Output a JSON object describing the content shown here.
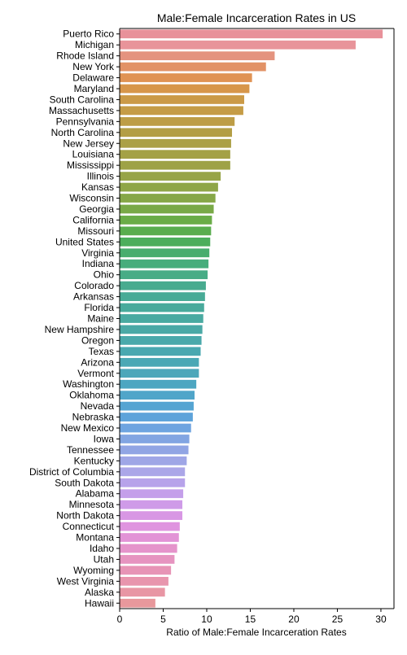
{
  "chart_data": {
    "type": "bar",
    "orientation": "horizontal",
    "title": "Male:Female Incarceration Rates in US",
    "xlabel": "Ratio of Male:Female Incarceration Rates",
    "ylabel": "",
    "xlim": [
      0,
      31.5
    ],
    "xticks": [
      0,
      5,
      10,
      15,
      20,
      25,
      30
    ],
    "grid": false,
    "categories": [
      "Puerto Rico",
      "Michigan",
      "Rhode Island",
      "New York",
      "Delaware",
      "Maryland",
      "South Carolina",
      "Massachusetts",
      "Pennsylvania",
      "North Carolina",
      "New Jersey",
      "Louisiana",
      "Mississippi",
      "Illinois",
      "Kansas",
      "Wisconsin",
      "Georgia",
      "California",
      "Missouri",
      "United States",
      "Virginia",
      "Indiana",
      "Ohio",
      "Colorado",
      "Arkansas",
      "Florida",
      "Maine",
      "New Hampshire",
      "Oregon",
      "Texas",
      "Arizona",
      "Vermont",
      "Washington",
      "Oklahoma",
      "Nevada",
      "Nebraska",
      "New Mexico",
      "Iowa",
      "Tennessee",
      "Kentucky",
      "District of Columbia",
      "South Dakota",
      "Alabama",
      "Minnesota",
      "North Dakota",
      "Connecticut",
      "Montana",
      "Idaho",
      "Utah",
      "Wyoming",
      "West Virginia",
      "Alaska",
      "Hawaii"
    ],
    "values": [
      30.2,
      27.1,
      17.8,
      16.8,
      15.2,
      14.9,
      14.3,
      14.2,
      13.2,
      12.9,
      12.8,
      12.7,
      12.7,
      11.6,
      11.3,
      11.0,
      10.8,
      10.6,
      10.5,
      10.4,
      10.3,
      10.2,
      10.1,
      9.9,
      9.8,
      9.7,
      9.6,
      9.5,
      9.4,
      9.3,
      9.1,
      9.1,
      8.8,
      8.6,
      8.5,
      8.4,
      8.2,
      8.0,
      7.9,
      7.7,
      7.5,
      7.5,
      7.3,
      7.2,
      7.2,
      6.9,
      6.8,
      6.6,
      6.3,
      5.9,
      5.6,
      5.2,
      4.1
    ],
    "colors": [
      "#e8919a",
      "#e8949a",
      "#e4937f",
      "#e29266",
      "#e09354",
      "#d7964a",
      "#cb9a47",
      "#c59c46",
      "#bd9d46",
      "#b39e45",
      "#aba046",
      "#a4a146",
      "#9ea246",
      "#97a447",
      "#8fa647",
      "#86a747",
      "#79a947",
      "#6aac47",
      "#59ad4e",
      "#4cae5c",
      "#48ad6e",
      "#47ad7c",
      "#48ac86",
      "#48ab8f",
      "#48ab96",
      "#49aa9c",
      "#49aaa1",
      "#4aa9a6",
      "#4aa9ab",
      "#4aa8b0",
      "#4ba8b5",
      "#4ca7ba",
      "#4da6c1",
      "#50a5c9",
      "#55a4d2",
      "#5da3da",
      "#6ea4e0",
      "#82a5e2",
      "#91a5e4",
      "#9fa6e6",
      "#aba6e8",
      "#b7a3ea",
      "#c49fea",
      "#cf9be8",
      "#d897e4",
      "#df94df",
      "#e293d6",
      "#e594cb",
      "#e694c0",
      "#e794b6",
      "#e895ad",
      "#e896a4",
      "#e8989c"
    ]
  }
}
